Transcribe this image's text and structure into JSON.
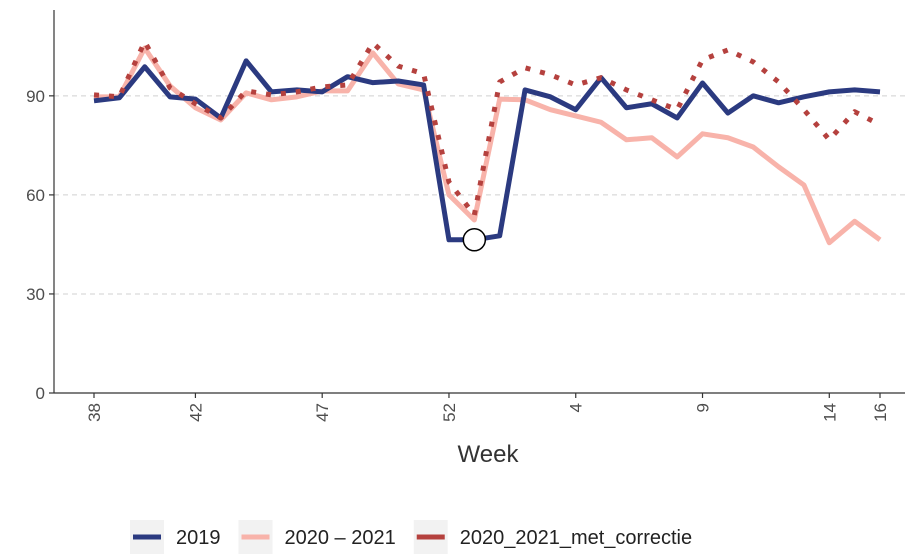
{
  "chart_data": {
    "type": "line",
    "x_label": "Week",
    "categories": [
      "38",
      null,
      null,
      null,
      "42",
      null,
      null,
      null,
      null,
      "47",
      null,
      null,
      null,
      null,
      "52",
      null,
      null,
      null,
      null,
      "4",
      null,
      null,
      null,
      null,
      "9",
      null,
      null,
      null,
      null,
      "14",
      null,
      "16"
    ],
    "series": [
      {
        "name": "2019",
        "color": "#2b3a80",
        "dash": "solid",
        "values": [
          88.5,
          89.4,
          98.8,
          89.7,
          89,
          83.3,
          100.6,
          91.2,
          91.8,
          91.2,
          95.8,
          94,
          94.5,
          93.3,
          46.4,
          46.4,
          47.6,
          91.8,
          89.7,
          85.8,
          95.5,
          86.4,
          87.6,
          83.3,
          93.9,
          84.8,
          90,
          87.9,
          89.7,
          91.2,
          91.8,
          91.2
        ]
      },
      {
        "name": "2020 – 2021",
        "color": "#f8b3aa",
        "dash": "solid",
        "values": [
          89.7,
          89.7,
          104.5,
          93,
          86.4,
          82.7,
          90.9,
          88.8,
          89.7,
          91.5,
          91.5,
          103,
          93.6,
          91.8,
          60,
          52.4,
          89,
          88.8,
          85.8,
          83.9,
          82,
          76.7,
          77.3,
          71.5,
          78.5,
          77.3,
          74.5,
          68.5,
          63,
          45.5,
          52,
          46.4
        ]
      },
      {
        "name": "2020_2021_met_correctie",
        "color": "#b5413e",
        "dash": "dotted",
        "values": [
          90.3,
          89.7,
          106.4,
          92.4,
          87.6,
          83.3,
          91.5,
          90.3,
          91.2,
          92.7,
          93.3,
          106,
          99,
          96.7,
          63.9,
          53.9,
          94.2,
          98.5,
          96.4,
          93.3,
          95.5,
          91.8,
          88.8,
          85.8,
          100.9,
          103.9,
          100.3,
          94.2,
          85.8,
          76.7,
          85.2,
          81.2
        ]
      }
    ],
    "highlight_series": 0,
    "highlight_index": 15,
    "ylim": [
      0,
      116
    ],
    "yticks": [
      0,
      30,
      60,
      90
    ],
    "grid": true,
    "legend": "bottom"
  }
}
